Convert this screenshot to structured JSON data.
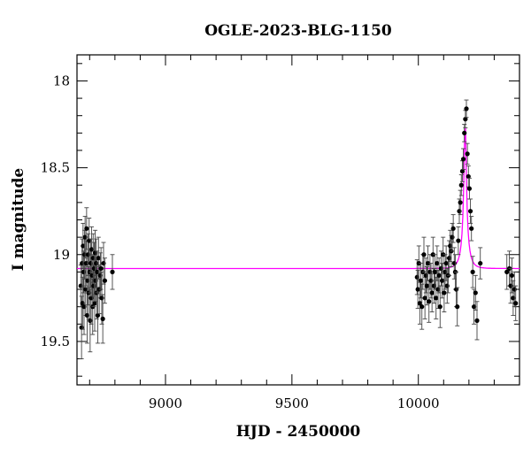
{
  "chart_data": {
    "type": "scatter",
    "title": "OGLE-2023-BLG-1150",
    "xlabel": "HJD - 2450000",
    "ylabel": "I magnitude",
    "xlim": [
      8650,
      10400
    ],
    "ylim": [
      19.75,
      17.85
    ],
    "y_inverted": true,
    "x_ticks": [
      9000,
      9500,
      10000
    ],
    "x_tick_labels": [
      "9000",
      "9500",
      "10000"
    ],
    "y_ticks": [
      18,
      18.5,
      19,
      19.5
    ],
    "y_tick_labels": [
      "18",
      "18.5",
      "19",
      "19.5"
    ],
    "grid": false,
    "legend": "none",
    "colors": {
      "points": "#000000",
      "model": "#ff00ff",
      "frame": "#000000"
    },
    "series": [
      {
        "type": "scatter_errorbars",
        "x": [
          8665,
          8668,
          8670,
          8672,
          8674,
          8676,
          8678,
          8680,
          8682,
          8684,
          8686,
          8688,
          8690,
          8692,
          8694,
          8696,
          8698,
          8700,
          8702,
          8704,
          8706,
          8708,
          8710,
          8712,
          8714,
          8716,
          8718,
          8720,
          8722,
          8724,
          8726,
          8728,
          8730,
          8732,
          8735,
          8738,
          8742,
          8745,
          8748,
          8752,
          8755,
          8760,
          8790,
          9995,
          9998,
          10002,
          10006,
          10010,
          10014,
          10018,
          10022,
          10026,
          10030,
          10034,
          10038,
          10042,
          10046,
          10050,
          10054,
          10058,
          10062,
          10066,
          10070,
          10074,
          10078,
          10082,
          10086,
          10090,
          10094,
          10098,
          10102,
          10106,
          10110,
          10114,
          10118,
          10122,
          10126,
          10130,
          10134,
          10138,
          10142,
          10146,
          10150,
          10154,
          10158,
          10162,
          10166,
          10170,
          10174,
          10178,
          10182,
          10186,
          10190,
          10194,
          10198,
          10202,
          10206,
          10210,
          10215,
          10220,
          10226,
          10232,
          10245,
          10350,
          10360,
          10365,
          10370,
          10375,
          10380,
          10385
        ],
        "y": [
          19.18,
          19.42,
          19.05,
          19.28,
          18.95,
          19.1,
          19.3,
          19.0,
          18.9,
          19.2,
          19.05,
          18.85,
          19.35,
          19.15,
          19.0,
          19.22,
          18.92,
          19.1,
          19.38,
          19.05,
          19.25,
          18.97,
          19.12,
          19.3,
          19.02,
          19.18,
          19.08,
          19.28,
          18.99,
          19.15,
          19.05,
          19.22,
          19.1,
          19.35,
          19.02,
          19.2,
          19.12,
          19.08,
          19.25,
          19.37,
          19.05,
          19.15,
          19.1,
          19.13,
          19.2,
          19.05,
          19.28,
          19.15,
          19.3,
          19.1,
          19.0,
          19.25,
          19.12,
          19.18,
          19.05,
          19.27,
          19.1,
          19.15,
          19.22,
          19.0,
          19.18,
          19.1,
          19.25,
          19.05,
          19.2,
          19.12,
          19.3,
          19.08,
          19.15,
          19.0,
          19.22,
          19.1,
          19.05,
          19.18,
          19.12,
          19.02,
          18.95,
          18.98,
          18.9,
          18.85,
          19.05,
          19.1,
          19.2,
          19.3,
          18.92,
          18.75,
          18.7,
          18.6,
          18.52,
          18.45,
          18.3,
          18.22,
          18.16,
          18.42,
          18.55,
          18.62,
          18.75,
          18.85,
          19.1,
          19.3,
          19.22,
          19.38,
          19.05,
          19.1,
          19.08,
          19.18,
          19.12,
          19.25,
          19.2,
          19.28
        ],
        "err": [
          0.12,
          0.18,
          0.14,
          0.15,
          0.13,
          0.12,
          0.16,
          0.14,
          0.12,
          0.15,
          0.13,
          0.12,
          0.16,
          0.14,
          0.12,
          0.15,
          0.13,
          0.12,
          0.18,
          0.14,
          0.15,
          0.13,
          0.12,
          0.16,
          0.14,
          0.12,
          0.15,
          0.16,
          0.13,
          0.12,
          0.14,
          0.15,
          0.12,
          0.16,
          0.12,
          0.14,
          0.13,
          0.12,
          0.15,
          0.14,
          0.12,
          0.13,
          0.1,
          0.1,
          0.11,
          0.1,
          0.12,
          0.1,
          0.13,
          0.1,
          0.1,
          0.12,
          0.1,
          0.11,
          0.1,
          0.12,
          0.1,
          0.1,
          0.11,
          0.1,
          0.1,
          0.1,
          0.12,
          0.1,
          0.11,
          0.1,
          0.12,
          0.1,
          0.1,
          0.1,
          0.11,
          0.1,
          0.1,
          0.1,
          0.1,
          0.1,
          0.09,
          0.09,
          0.08,
          0.08,
          0.09,
          0.1,
          0.1,
          0.11,
          0.08,
          0.07,
          0.07,
          0.06,
          0.06,
          0.06,
          0.05,
          0.05,
          0.05,
          0.06,
          0.06,
          0.06,
          0.07,
          0.07,
          0.09,
          0.1,
          0.1,
          0.11,
          0.09,
          0.1,
          0.1,
          0.1,
          0.1,
          0.1,
          0.1,
          0.1
        ]
      },
      {
        "type": "model_curve",
        "baseline": 19.08,
        "peak_mag": 18.22,
        "t0": 10185,
        "tE": 25
      }
    ]
  }
}
